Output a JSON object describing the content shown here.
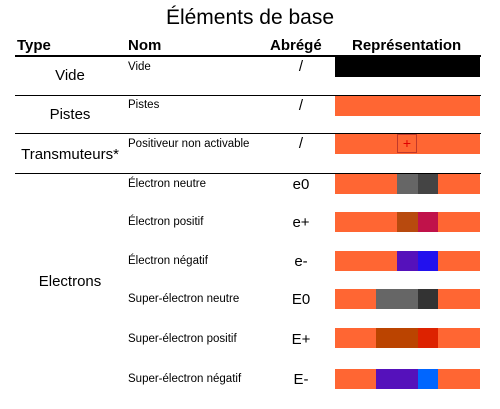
{
  "title": "Éléments de base",
  "headers": {
    "type": "Type",
    "nom": "Nom",
    "abrege": "Abrégé",
    "representation": "Représentation"
  },
  "rows": [
    {
      "type": "Vide",
      "nom": "Vide",
      "abrege": "/"
    },
    {
      "type": "Pistes",
      "nom": "Pistes",
      "abrege": "/"
    },
    {
      "type": "Transmuteurs*",
      "nom": "Positiveur non activable",
      "abrege": "/",
      "symbol": "+"
    },
    {
      "type": "Electrons",
      "items": [
        {
          "nom": "Électron neutre",
          "abrege": "e0"
        },
        {
          "nom": "Électron positif",
          "abrege": "e+"
        },
        {
          "nom": "Électron négatif",
          "abrege": "e-"
        },
        {
          "nom": "Super-électron neutre",
          "abrege": "E0"
        },
        {
          "nom": "Super-électron positif",
          "abrege": "E+"
        },
        {
          "nom": "Super-électron négatif",
          "abrege": "E-"
        }
      ]
    }
  ],
  "colors": {
    "track": "#ff6633",
    "empty": "#000000",
    "neutral_light": "#666666",
    "neutral_dark": "#444444",
    "positive_light": "#b84a0e",
    "positive_dark": "#c0124a",
    "negative_light": "#5511bb",
    "negative_dark": "#2211ee",
    "super_neutral_light": "#666666",
    "super_neutral_dark": "#333333",
    "super_positive_light": "#bb4400",
    "super_positive_dark": "#dd2200",
    "super_negative_light": "#5511bb",
    "super_negative_dark": "#0066ff",
    "transmuter_plus": "#e00000"
  }
}
